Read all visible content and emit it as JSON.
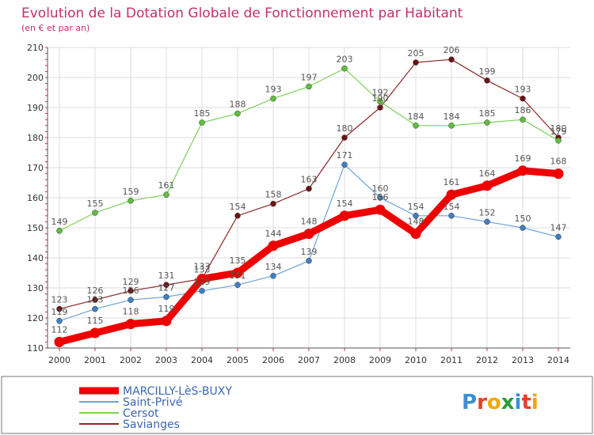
{
  "header": {
    "title": "Evolution de la Dotation Globale de Fonctionnement par Habitant",
    "subtitle": "(en € et par an)"
  },
  "logo": {
    "text": "Proxiti",
    "colors": [
      "#3b8fd6",
      "#e3402a",
      "#f0a800",
      "#2c9a3a",
      "#3b8fd6",
      "#e3402a",
      "#f0a800"
    ]
  },
  "chart_data": {
    "type": "line",
    "title": "Evolution de la Dotation Globale de Fonctionnement par Habitant",
    "subtitle": "(en € et par an)",
    "xlabel": "",
    "ylabel": "",
    "ylim": [
      110,
      210
    ],
    "yticks": [
      110,
      120,
      130,
      140,
      150,
      160,
      170,
      180,
      190,
      200,
      210
    ],
    "grid": true,
    "legend_position": "bottom-left",
    "x": [
      "2000",
      "2001",
      "2002",
      "2003",
      "2004",
      "2005",
      "2006",
      "2007",
      "2008",
      "2009",
      "2010",
      "2011",
      "2012",
      "2013",
      "2014"
    ],
    "series": [
      {
        "name": "Savianges",
        "color": "#8b2a2a",
        "marker_color": "#6a1414",
        "emphasis": false,
        "values": [
          123,
          126,
          129,
          131,
          133,
          154,
          158,
          163,
          180,
          190,
          205,
          206,
          199,
          193,
          180
        ],
        "labels": [
          "123",
          "126",
          "129",
          "131",
          "133",
          "154",
          "158",
          "163",
          "180",
          "190",
          "205",
          "206",
          "199",
          "193",
          "180"
        ]
      },
      {
        "name": "Cersot",
        "color": "#7cd25a",
        "marker_color": "#5fbf3c",
        "emphasis": false,
        "values": [
          149,
          155,
          159,
          161,
          185,
          188,
          193,
          197,
          203,
          192,
          184,
          184,
          185,
          186,
          179
        ],
        "labels": [
          "149",
          "155",
          "159",
          "161",
          "185",
          "188",
          "193",
          "197",
          "203",
          "192",
          "184",
          "184",
          "185",
          "186",
          "179"
        ]
      },
      {
        "name": "Saint-Privé",
        "color": "#6fa3d6",
        "marker_color": "#3f7fc4",
        "emphasis": false,
        "values": [
          119,
          123,
          126,
          127,
          129,
          131,
          134,
          139,
          171,
          160,
          154,
          154,
          152,
          150,
          147
        ],
        "labels": [
          "119",
          "123",
          "126",
          "127",
          "129",
          "131",
          "134",
          "139",
          "171",
          "160",
          "154",
          "154",
          "152",
          "150",
          "147"
        ]
      },
      {
        "name": "MARCILLY-LèS-BUXY",
        "color": "#ee0000",
        "marker_color": "#ee0000",
        "emphasis": true,
        "values": [
          112,
          115,
          118,
          119,
          133,
          135,
          144,
          148,
          154,
          156,
          148,
          161,
          164,
          169,
          168
        ],
        "labels": [
          "112",
          "115",
          "118",
          "119",
          "133",
          "135",
          "144",
          "148",
          "154",
          "156",
          "148",
          "161",
          "164",
          "169",
          "168"
        ]
      }
    ],
    "legend": [
      {
        "name": "MARCILLY-LèS-BUXY",
        "color": "#ee0000",
        "emphasis": true
      },
      {
        "name": "Saint-Privé",
        "color": "#6fa3d6",
        "emphasis": false
      },
      {
        "name": "Cersot",
        "color": "#7cd25a",
        "emphasis": false
      },
      {
        "name": "Savianges",
        "color": "#8b2a2a",
        "emphasis": false
      }
    ]
  }
}
